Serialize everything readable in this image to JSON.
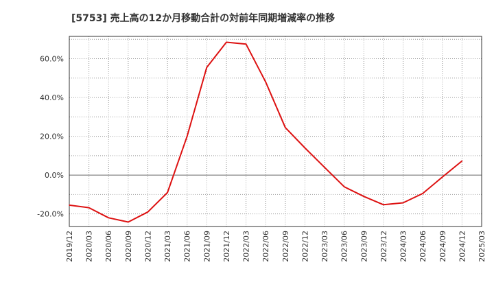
{
  "title": "[5753]  売上高の12か月移動合計の対前年同期増減率の推移",
  "chart_data": {
    "type": "line",
    "title": "[5753]  売上高の12か月移動合計の対前年同期増減率の推移",
    "xlabel": "",
    "ylabel": "",
    "x_ticks": [
      "2019/12",
      "2020/03",
      "2020/06",
      "2020/09",
      "2020/12",
      "2021/03",
      "2021/06",
      "2021/09",
      "2021/12",
      "2022/03",
      "2022/06",
      "2022/09",
      "2022/12",
      "2023/03",
      "2023/06",
      "2023/09",
      "2023/12",
      "2024/03",
      "2024/06",
      "2024/09",
      "2024/12",
      "2025/03"
    ],
    "y_ticks": [
      "-20.0%",
      "0.0%",
      "20.0%",
      "40.0%",
      "60.0%"
    ],
    "ylim": [
      -26.5,
      71.5
    ],
    "grid": true,
    "series": [
      {
        "color": "#dd1111",
        "x": [
          "2019/12",
          "2020/03",
          "2020/06",
          "2020/09",
          "2020/12",
          "2021/03",
          "2021/06",
          "2021/09",
          "2021/12",
          "2022/03",
          "2022/06",
          "2022/09",
          "2022/12",
          "2023/03",
          "2023/06",
          "2023/09",
          "2023/12",
          "2024/03",
          "2024/06",
          "2024/09",
          "2024/12"
        ],
        "values": [
          -15.5,
          -16.8,
          -22.0,
          -24.2,
          -19.0,
          -9.0,
          20.0,
          55.5,
          68.5,
          67.5,
          48.0,
          24.5,
          14.0,
          4.0,
          -6.0,
          -11.0,
          -15.3,
          -14.3,
          -9.5,
          -1.0,
          7.3
        ]
      }
    ]
  }
}
